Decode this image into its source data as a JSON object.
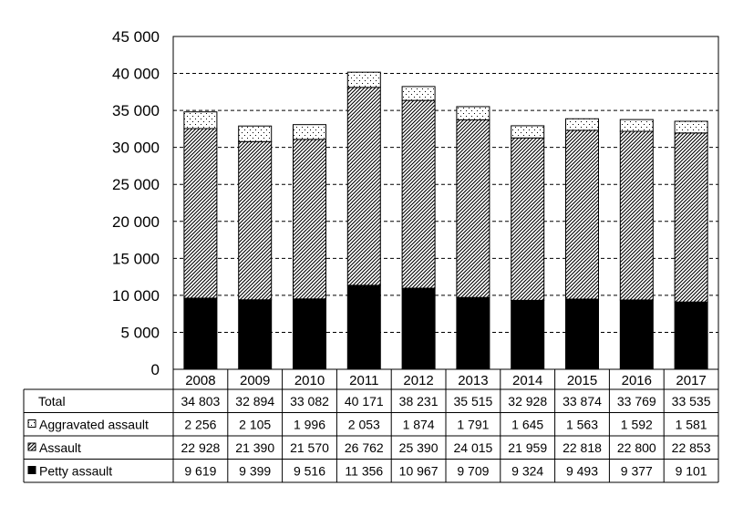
{
  "chart_data": {
    "type": "bar",
    "stacked": true,
    "categories": [
      "2008",
      "2009",
      "2010",
      "2011",
      "2012",
      "2013",
      "2014",
      "2015",
      "2016",
      "2017"
    ],
    "ylim": [
      0,
      45000
    ],
    "yticks": [
      0,
      5000,
      10000,
      15000,
      20000,
      25000,
      30000,
      35000,
      40000,
      45000
    ],
    "ytick_labels": [
      "0",
      "5 000",
      "10 000",
      "15 000",
      "20 000",
      "25 000",
      "30 000",
      "35 000",
      "40 000",
      "45 000"
    ],
    "grid": true,
    "legend": "data table rows at bottom",
    "series": [
      {
        "name": "Petty assault",
        "fill": "#000000",
        "values": [
          9619,
          9399,
          9516,
          11356,
          10967,
          9709,
          9324,
          9493,
          9377,
          9101
        ]
      },
      {
        "name": "Assault",
        "fill": "diagonal-hatch",
        "values": [
          22928,
          21390,
          21570,
          26762,
          25390,
          24015,
          21959,
          22818,
          22800,
          22853
        ]
      },
      {
        "name": "Aggravated assault",
        "fill": "dotted",
        "values": [
          2256,
          2105,
          1996,
          2053,
          1874,
          1791,
          1645,
          1563,
          1592,
          1581
        ]
      }
    ],
    "table": {
      "rows": [
        {
          "label": "Total",
          "marker": "none",
          "cells": [
            "34 803",
            "32 894",
            "33 082",
            "40 171",
            "38 231",
            "35 515",
            "32 928",
            "33 874",
            "33 769",
            "33 535"
          ]
        },
        {
          "label": "Aggravated assault",
          "marker": "dotted",
          "cells": [
            "2 256",
            "2 105",
            "1 996",
            "2 053",
            "1 874",
            "1 791",
            "1 645",
            "1 563",
            "1 592",
            "1 581"
          ]
        },
        {
          "label": "Assault",
          "marker": "diagonal-hatch",
          "cells": [
            "22 928",
            "21 390",
            "21 570",
            "26 762",
            "25 390",
            "24 015",
            "21 959",
            "22 818",
            "22 800",
            "22 853"
          ]
        },
        {
          "label": "Petty assault",
          "marker": "black",
          "cells": [
            "9 619",
            "9 399",
            "9 516",
            "11 356",
            "10 967",
            "9 709",
            "9 324",
            "9 493",
            "9 377",
            "9 101"
          ]
        }
      ]
    }
  }
}
